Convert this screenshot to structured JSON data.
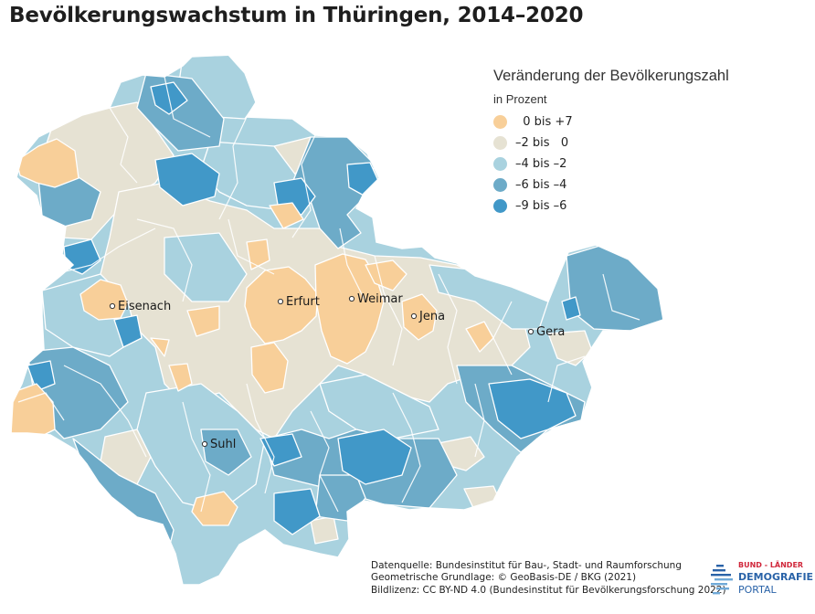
{
  "title": "Bevölkerungswachstum in Thüringen, 2014–2020",
  "legend": {
    "title": "Veränderung der Bevölkerungszahl",
    "subtitle": "in Prozent",
    "classes": [
      {
        "label": "  0 bis +7",
        "color": "#f8cf99"
      },
      {
        "label": "–2 bis   0",
        "color": "#e6e2d3"
      },
      {
        "label": "–4 bis –2",
        "color": "#a9d2df"
      },
      {
        "label": "–6 bis –4",
        "color": "#6dabc8"
      },
      {
        "label": "–9 bis –6",
        "color": "#4198c8"
      }
    ]
  },
  "cities": {
    "eisenach": "Eisenach",
    "erfurt": "Erfurt",
    "weimar": "Weimar",
    "jena": "Jena",
    "gera": "Gera",
    "suhl": "Suhl"
  },
  "source": {
    "line1": "Datenquelle: Bundesinstitut für Bau-, Stadt- und Raumforschung",
    "line2": "Geometrische Grundlage: © GeoBasis-DE / BKG (2021)",
    "line3": "Bildlizenz: CC BY-ND 4.0 (Bundesinstitut für Bevölkerungsforschung 2022)"
  },
  "logo": {
    "line1": "BUND - LÄNDER",
    "line2": "DEMOGRAFIE",
    "line3": "PORTAL"
  }
}
